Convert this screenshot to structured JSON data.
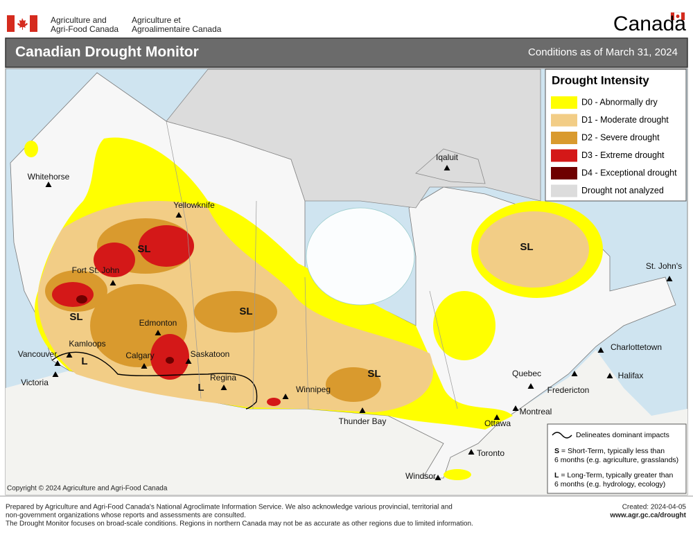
{
  "header": {
    "dept_en": [
      "Agriculture and",
      "Agri-Food Canada"
    ],
    "dept_fr": [
      "Agriculture et",
      "Agroalimentaire Canada"
    ],
    "wordmark": "Canada"
  },
  "title_bar": {
    "title": "Canadian Drought Monitor",
    "conditions": "Conditions as of March 31, 2024"
  },
  "legend": {
    "title": "Drought Intensity",
    "items": [
      {
        "label": "D0 - Abnormally dry",
        "color": "#ffff00"
      },
      {
        "label": "D1 - Moderate drought",
        "color": "#f2cd86"
      },
      {
        "label": "D2 - Severe drought",
        "color": "#d99a2e"
      },
      {
        "label": "D3 - Extreme drought",
        "color": "#d41818"
      },
      {
        "label": "D4 - Exceptional drought",
        "color": "#6e0000"
      },
      {
        "label": "Drought not analyzed",
        "color": "#dcdcdc"
      }
    ]
  },
  "cities": [
    "Whitehorse",
    "Yellowknife",
    "Fort St. John",
    "Edmonton",
    "Kamloops",
    "Vancouver",
    "Victoria",
    "Calgary",
    "Saskatoon",
    "Regina",
    "Winnipeg",
    "Thunder Bay",
    "Iqaluit",
    "St. John's",
    "Charlottetown",
    "Halifax",
    "Quebec",
    "Fredericton",
    "Montreal",
    "Ottawa",
    "Toronto",
    "Windsor"
  ],
  "impact_labels": [
    "SL",
    "SL",
    "SL",
    "SL",
    "SL",
    "L",
    "L"
  ],
  "impacts_legend": {
    "line": "Delineates dominant impacts",
    "entries": [
      {
        "key": "S",
        "lines": [
          " = Short-Term, typically less than",
          "6 months (e.g. agriculture, grasslands)"
        ]
      },
      {
        "key": "L",
        "lines": [
          " = Long-Term, typically greater  than",
          "6 months (e.g. hydrology, ecology)"
        ]
      }
    ]
  },
  "copyright": "Copyright © 2024 Agriculture and Agri-Food Canada",
  "footer": {
    "notes": [
      "Prepared by Agriculture and Agri-Food Canada's National Agroclimate Information Service.  We also acknowledge various provincial, territorial and",
      "non-government organizations whose reports and assessments are consulted.",
      "The Drought Monitor focuses on broad-scale conditions.  Regions in northern Canada may not be as accurate as other regions due to limited information."
    ],
    "created": "Created: 2024-04-05",
    "url": "www.agr.gc.ca/drought"
  }
}
